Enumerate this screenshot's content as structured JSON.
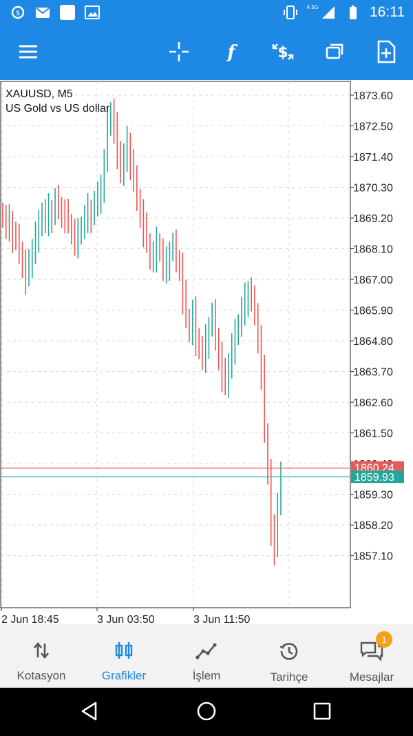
{
  "status_bar": {
    "time": "16:11",
    "network": "4.5G",
    "icons": [
      "mt-app-icon",
      "gmail-icon",
      "blank-notification-icon",
      "image-icon",
      "vibrate-icon",
      "signal-icon",
      "battery-icon"
    ]
  },
  "toolbar": {
    "icons": [
      "menu-icon",
      "crosshair-icon",
      "function-icon",
      "trade-icon",
      "windows-icon",
      "new-document-icon"
    ]
  },
  "chart": {
    "symbol_line": "XAUUSD, M5",
    "description": "US Gold vs US dollar",
    "colors": {
      "bull": "#26A69A",
      "bear": "#EF5350",
      "grid": "#CFD8DC"
    }
  },
  "chart_data": {
    "type": "candlestick",
    "price_axis_labels": [
      "1873.60",
      "1872.50",
      "1871.40",
      "1870.30",
      "1869.20",
      "1868.10",
      "1867.00",
      "1865.90",
      "1864.80",
      "1863.70",
      "1862.60",
      "1861.50",
      "1860.40",
      "1859.30",
      "1858.20",
      "1857.10"
    ],
    "time_axis_labels": [
      "2 Jun 18:45",
      "3 Jun 03:50",
      "3 Jun 11:50"
    ],
    "ylim": [
      1856.4,
      1873.6
    ],
    "ask_price": "1860.24",
    "bid_price": "1859.93",
    "ask": 1860.24,
    "bid": 1859.93,
    "closes": [
      1869.2,
      1868.9,
      1869.1,
      1868.6,
      1868.4,
      1868.0,
      1867.6,
      1867.1,
      1867.5,
      1868.1,
      1868.6,
      1868.9,
      1869.4,
      1869.1,
      1869.5,
      1869.3,
      1869.8,
      1869.6,
      1869.4,
      1869.3,
      1869.0,
      1868.7,
      1868.4,
      1868.6,
      1868.9,
      1869.2,
      1869.5,
      1869.3,
      1869.7,
      1869.9,
      1870.4,
      1871.2,
      1872.6,
      1873.0,
      1872.4,
      1871.6,
      1870.8,
      1871.4,
      1871.9,
      1871.2,
      1870.5,
      1869.9,
      1869.4,
      1868.8,
      1868.3,
      1867.8,
      1867.9,
      1868.3,
      1868.0,
      1867.4,
      1867.6,
      1868.0,
      1868.2,
      1867.7,
      1867.5,
      1866.4,
      1865.6,
      1865.2,
      1865.8,
      1864.9,
      1864.5,
      1864.2,
      1864.8,
      1865.3,
      1865.7,
      1864.9,
      1864.3,
      1863.6,
      1863.2,
      1864.0,
      1864.6,
      1865.0,
      1865.4,
      1865.9,
      1866.3,
      1866.6,
      1866.2,
      1865.8,
      1864.9,
      1863.7,
      1861.5,
      1860.1,
      1858.0,
      1857.4,
      1859.0,
      1860.0
    ]
  },
  "bottom_nav": [
    {
      "label": "Kotasyon",
      "icon": "quotes-arrows-icon"
    },
    {
      "label": "Grafikler",
      "icon": "candlestick-chart-icon"
    },
    {
      "label": "İşlem",
      "icon": "trade-line-icon"
    },
    {
      "label": "Tarihçe",
      "icon": "history-icon"
    },
    {
      "label": "Mesajlar",
      "icon": "messages-icon",
      "badge": "1"
    }
  ],
  "system_nav": [
    "back-icon",
    "home-icon",
    "recents-icon"
  ]
}
